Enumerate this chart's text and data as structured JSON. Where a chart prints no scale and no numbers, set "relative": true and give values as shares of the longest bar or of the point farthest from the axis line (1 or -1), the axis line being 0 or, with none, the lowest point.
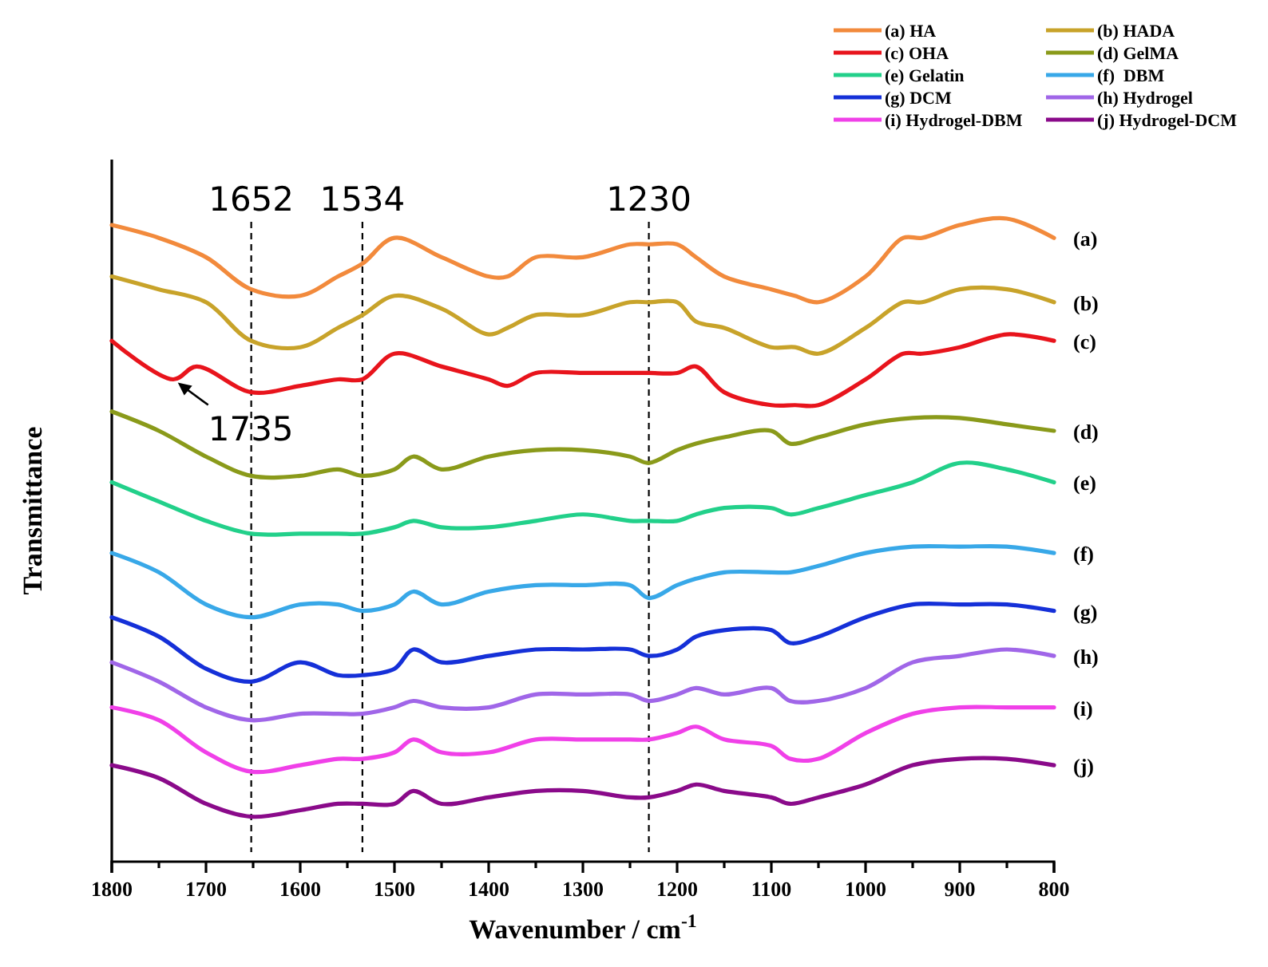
{
  "chart_data": {
    "type": "line",
    "relative": true,
    "xlabel": "Wavenumber / cm$^{-1}$",
    "ylabel": "Transmittance",
    "legend": "top right",
    "xlim": [
      1800,
      800
    ],
    "xticks": [
      1800,
      {
        "value": 1750,
        "label": null
      },
      1700,
      {
        "value": 1650,
        "label": null
      },
      1600,
      {
        "value": 1550,
        "label": null
      },
      1500,
      {
        "value": 1450,
        "label": null
      },
      1400,
      {
        "value": 1350,
        "label": null
      },
      1300,
      {
        "value": 1250,
        "label": null
      },
      1200,
      {
        "value": 1150,
        "label": null
      },
      1100,
      {
        "value": 1050,
        "label": null
      },
      1000,
      {
        "value": 950,
        "label": null
      },
      900,
      {
        "value": 850,
        "label": null
      },
      800
    ],
    "x": [
      1800,
      1750,
      1700,
      1652,
      1600,
      1560,
      1534,
      1500,
      1480,
      1450,
      1400,
      1350,
      1300,
      1250,
      1230,
      1200,
      1180,
      1150,
      1100,
      1080,
      1050,
      1000,
      950,
      900,
      850,
      800
    ],
    "series": [
      {
        "name": "(a) HA",
        "color": "#f28a3c",
        "x": [
          1800,
          1750,
          1700,
          1652,
          1600,
          1560,
          1534,
          1500,
          1450,
          1400,
          1380,
          1350,
          1300,
          1250,
          1230,
          1200,
          1180,
          1150,
          1100,
          1075,
          1050,
          1000,
          960,
          940,
          900,
          850,
          800
        ],
        "values": [
          0.99,
          0.97,
          0.94,
          0.89,
          0.88,
          0.91,
          0.93,
          0.97,
          0.94,
          0.91,
          0.91,
          0.94,
          0.94,
          0.96,
          0.96,
          0.96,
          0.94,
          0.91,
          0.89,
          0.88,
          0.87,
          0.91,
          0.97,
          0.97,
          0.99,
          1.0,
          0.97
        ]
      },
      {
        "name": "(b) HADA",
        "color": "#c8a32a",
        "x": [
          1800,
          1750,
          1700,
          1652,
          1600,
          1560,
          1534,
          1500,
          1450,
          1400,
          1380,
          1350,
          1300,
          1250,
          1230,
          1200,
          1180,
          1150,
          1100,
          1075,
          1050,
          1000,
          960,
          940,
          900,
          850,
          800
        ],
        "values": [
          0.91,
          0.89,
          0.87,
          0.81,
          0.8,
          0.83,
          0.85,
          0.88,
          0.86,
          0.82,
          0.83,
          0.85,
          0.85,
          0.87,
          0.87,
          0.87,
          0.84,
          0.83,
          0.8,
          0.8,
          0.79,
          0.83,
          0.87,
          0.87,
          0.89,
          0.89,
          0.87
        ]
      },
      {
        "name": "(c) OHA",
        "color": "#e8141c",
        "x": [
          1800,
          1735,
          1710,
          1652,
          1600,
          1560,
          1534,
          1500,
          1450,
          1400,
          1380,
          1350,
          1300,
          1250,
          1230,
          1200,
          1180,
          1150,
          1100,
          1075,
          1050,
          1000,
          960,
          940,
          900,
          850,
          800
        ],
        "values": [
          0.81,
          0.75,
          0.77,
          0.73,
          0.74,
          0.75,
          0.75,
          0.79,
          0.77,
          0.75,
          0.74,
          0.76,
          0.76,
          0.76,
          0.76,
          0.76,
          0.77,
          0.73,
          0.71,
          0.71,
          0.71,
          0.75,
          0.79,
          0.79,
          0.8,
          0.82,
          0.81
        ]
      },
      {
        "name": "(d) GelMA",
        "color": "#8a9a1a",
        "values": [
          0.7,
          0.67,
          0.63,
          0.6,
          0.6,
          0.61,
          0.6,
          0.61,
          0.63,
          0.61,
          0.63,
          0.64,
          0.64,
          0.63,
          0.62,
          0.64,
          0.65,
          0.66,
          0.67,
          0.65,
          0.66,
          0.68,
          0.69,
          0.69,
          0.68,
          0.67
        ]
      },
      {
        "name": "(e) Gelatin",
        "color": "#22d08a",
        "values": [
          0.59,
          0.56,
          0.53,
          0.51,
          0.51,
          0.51,
          0.51,
          0.52,
          0.53,
          0.52,
          0.52,
          0.53,
          0.54,
          0.53,
          0.53,
          0.53,
          0.54,
          0.55,
          0.55,
          0.54,
          0.55,
          0.57,
          0.59,
          0.62,
          0.61,
          0.59
        ]
      },
      {
        "name": "(f)  DBM",
        "color": "#38a8e8",
        "values": [
          0.48,
          0.45,
          0.4,
          0.38,
          0.4,
          0.4,
          0.39,
          0.4,
          0.42,
          0.4,
          0.42,
          0.43,
          0.43,
          0.43,
          0.41,
          0.43,
          0.44,
          0.45,
          0.45,
          0.45,
          0.46,
          0.48,
          0.49,
          0.49,
          0.49,
          0.48
        ]
      },
      {
        "name": "(g) DCM",
        "color": "#1530d8",
        "values": [
          0.38,
          0.35,
          0.3,
          0.28,
          0.31,
          0.29,
          0.29,
          0.3,
          0.33,
          0.31,
          0.32,
          0.33,
          0.33,
          0.33,
          0.32,
          0.33,
          0.35,
          0.36,
          0.36,
          0.34,
          0.35,
          0.38,
          0.4,
          0.4,
          0.4,
          0.39
        ]
      },
      {
        "name": "(h) Hydrogel",
        "color": "#a066e8",
        "values": [
          0.31,
          0.28,
          0.24,
          0.22,
          0.23,
          0.23,
          0.23,
          0.24,
          0.25,
          0.24,
          0.24,
          0.26,
          0.26,
          0.26,
          0.25,
          0.26,
          0.27,
          0.26,
          0.27,
          0.25,
          0.25,
          0.27,
          0.31,
          0.32,
          0.33,
          0.32
        ]
      },
      {
        "name": "(i) Hydrogel-DBM",
        "color": "#f040e8",
        "values": [
          0.24,
          0.22,
          0.17,
          0.14,
          0.15,
          0.16,
          0.16,
          0.17,
          0.19,
          0.17,
          0.17,
          0.19,
          0.19,
          0.19,
          0.19,
          0.2,
          0.21,
          0.19,
          0.18,
          0.16,
          0.16,
          0.2,
          0.23,
          0.24,
          0.24,
          0.24
        ]
      },
      {
        "name": "(j) Hydrogel-DCM",
        "color": "#8a0a8a",
        "values": [
          0.15,
          0.13,
          0.09,
          0.07,
          0.08,
          0.09,
          0.09,
          0.09,
          0.11,
          0.09,
          0.1,
          0.11,
          0.11,
          0.1,
          0.1,
          0.11,
          0.12,
          0.11,
          0.1,
          0.09,
          0.1,
          0.12,
          0.15,
          0.16,
          0.16,
          0.15
        ]
      }
    ],
    "ref_lines": [
      {
        "axis": "x",
        "value": 1652,
        "label": "1652",
        "line_style": "dashed"
      },
      {
        "axis": "x",
        "value": 1534,
        "label": "1534",
        "line_style": "dashed"
      },
      {
        "axis": "x",
        "value": 1230,
        "label": "1230",
        "line_style": "dashed"
      }
    ],
    "annotations": [
      {
        "text": "1735",
        "x": 1735,
        "y": 0.75
      },
      "(a)",
      "(b)",
      "(c)",
      "(d)",
      "(e)",
      "(f)",
      "(g)",
      "(h)",
      "(i)",
      "(j)"
    ]
  }
}
